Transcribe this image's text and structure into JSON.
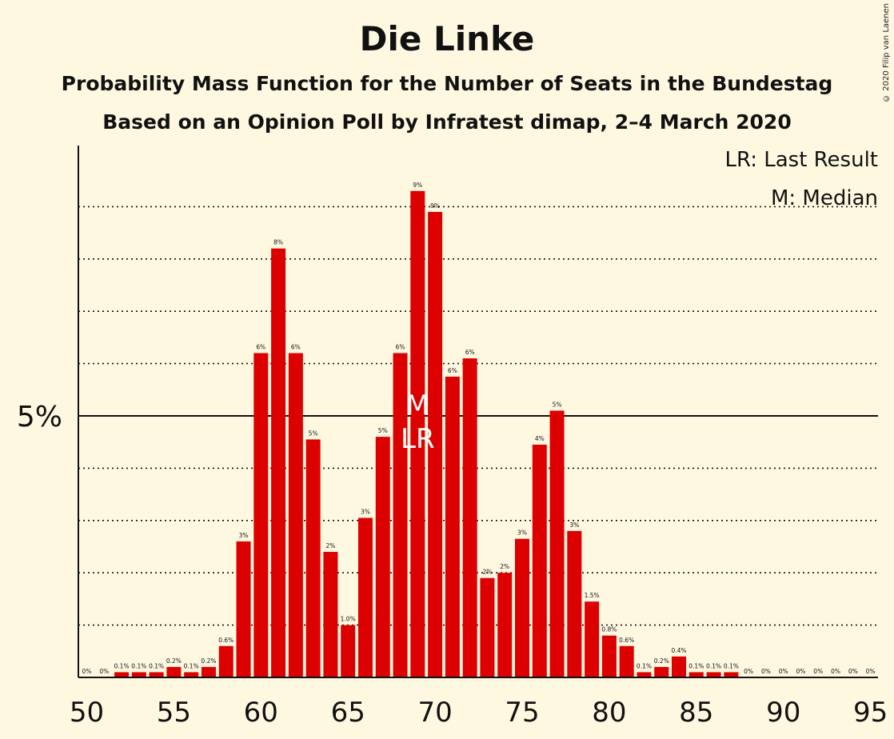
{
  "title": "Die Linke",
  "subtitle": "Probability Mass Function for the Number of Seats in the Bundestag",
  "subtitle2": "Based on an Opinion Poll by Infratest dimap, 2–4 March 2020",
  "copyright": "© 2020 Filip van Laenen",
  "legend": {
    "last_result": "LR: Last Result",
    "median": "M: Median"
  },
  "colors": {
    "bar": "#dd0000",
    "background": "#fff8e1"
  },
  "chart_data": {
    "type": "bar",
    "title": "Die Linke",
    "xlabel": "",
    "ylabel": "",
    "x": [
      50,
      51,
      52,
      53,
      54,
      55,
      56,
      57,
      58,
      59,
      60,
      61,
      62,
      63,
      64,
      65,
      66,
      67,
      68,
      69,
      70,
      71,
      72,
      73,
      74,
      75,
      76,
      77,
      78,
      79,
      80,
      81,
      82,
      83,
      84,
      85,
      86,
      87,
      88,
      89,
      90,
      91,
      92,
      93,
      94,
      95
    ],
    "values": [
      0,
      0,
      0.1,
      0.1,
      0.1,
      0.2,
      0.1,
      0.2,
      0.6,
      2.6,
      6.2,
      8.2,
      6.2,
      4.55,
      2.4,
      1.0,
      3.05,
      4.6,
      6.2,
      9.3,
      8.9,
      5.75,
      6.1,
      1.9,
      2.0,
      2.65,
      4.45,
      5.1,
      2.8,
      1.45,
      0.8,
      0.6,
      0.1,
      0.2,
      0.4,
      0.1,
      0.1,
      0.1,
      0,
      0,
      0,
      0,
      0,
      0,
      0,
      0
    ],
    "labels": [
      "0%",
      "0%",
      "0.1%",
      "0.1%",
      "0.1%",
      "0.2%",
      "0.1%",
      "0.2%",
      "0.6%",
      "3%",
      "6%",
      "8%",
      "6%",
      "5%",
      "2%",
      "1.0%",
      "3%",
      "5%",
      "6%",
      "9%",
      "9%",
      "6%",
      "6%",
      "2%",
      "2%",
      "3%",
      "4%",
      "5%",
      "3%",
      "1.5%",
      "0.8%",
      "0.6%",
      "0.1%",
      "0.2%",
      "0.4%",
      "0.1%",
      "0.1%",
      "0.1%",
      "0%",
      "0%",
      "0%",
      "0%",
      "0%",
      "0%",
      "0%",
      "0%"
    ],
    "x_ticks": [
      "50",
      "55",
      "60",
      "65",
      "70",
      "75",
      "80",
      "85",
      "90",
      "95"
    ],
    "y_tick_label": "5%",
    "y_reference": 5,
    "ylim": [
      0,
      10
    ],
    "grid": "dotted every 1%",
    "median": 69,
    "median_marker": "M",
    "last_result": 69,
    "last_result_marker": "LR"
  }
}
